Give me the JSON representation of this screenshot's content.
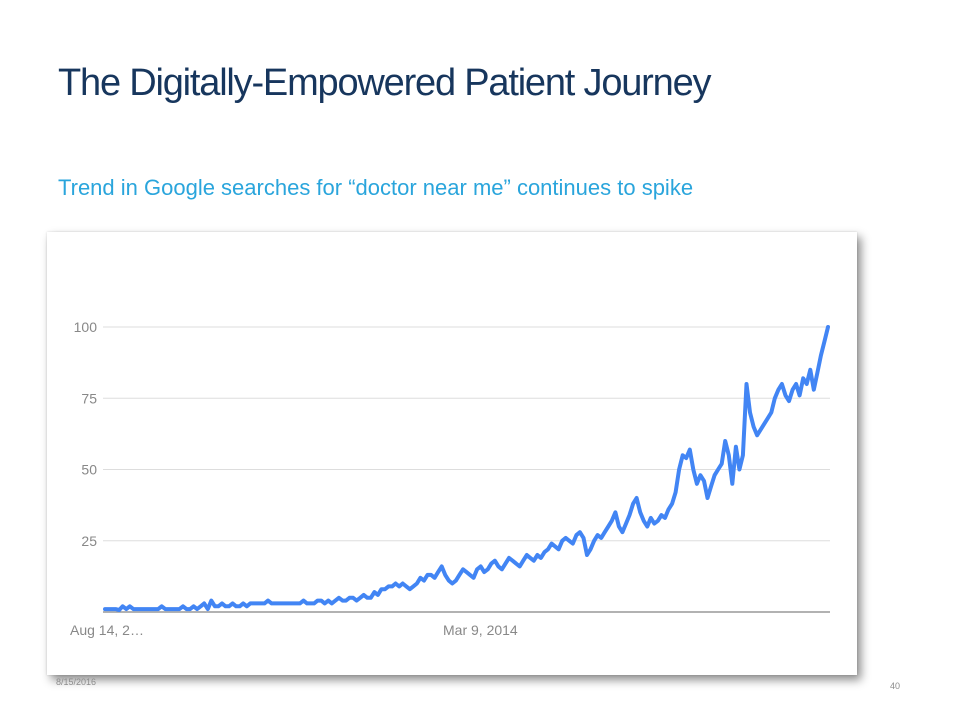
{
  "slide": {
    "title": "The Digitally-Empowered Patient Journey",
    "subtitle": "Trend in Google searches for “doctor near me” continues to spike",
    "footer_date": "8/15/2016",
    "page_number": "40"
  },
  "chart_data": {
    "type": "line",
    "title": "",
    "xlabel": "",
    "ylabel": "",
    "ylim": [
      0,
      100
    ],
    "y_ticks": [
      "25",
      "50",
      "75",
      "100"
    ],
    "x_tick_labels": [
      "Aug 14, 2…",
      "Mar 9, 2014"
    ],
    "grid": true,
    "legend": "none",
    "series_color": "#4285f4",
    "series": [
      {
        "values": [
          1,
          1,
          1,
          1,
          0,
          2,
          1,
          2,
          1,
          1,
          1,
          1,
          1,
          1,
          1,
          1,
          2,
          1,
          1,
          1,
          1,
          1,
          2,
          1,
          1,
          2,
          1,
          2,
          3,
          1,
          4,
          2,
          2,
          3,
          2,
          2,
          3,
          2,
          2,
          3,
          2,
          3,
          3,
          3,
          3,
          3,
          4,
          3,
          3,
          3,
          3,
          3,
          3,
          3,
          3,
          3,
          4,
          3,
          3,
          3,
          4,
          4,
          3,
          4,
          3,
          4,
          5,
          4,
          4,
          5,
          5,
          4,
          5,
          6,
          5,
          5,
          7,
          6,
          8,
          8,
          9,
          9,
          10,
          9,
          10,
          9,
          8,
          9,
          10,
          12,
          11,
          13,
          13,
          12,
          14,
          16,
          13,
          11,
          10,
          11,
          13,
          15,
          14,
          13,
          12,
          15,
          16,
          14,
          15,
          17,
          18,
          16,
          15,
          17,
          19,
          18,
          17,
          16,
          18,
          20,
          19,
          18,
          20,
          19,
          21,
          22,
          24,
          23,
          22,
          25,
          26,
          25,
          24,
          27,
          28,
          26,
          20,
          22,
          25,
          27,
          26,
          28,
          30,
          32,
          35,
          30,
          28,
          31,
          34,
          38,
          40,
          35,
          32,
          30,
          33,
          31,
          32,
          34,
          33,
          36,
          38,
          42,
          50,
          55,
          54,
          57,
          50,
          45,
          48,
          46,
          40,
          44,
          48,
          50,
          52,
          60,
          55,
          45,
          58,
          50,
          55,
          80,
          70,
          65,
          62,
          64,
          66,
          68,
          70,
          75,
          78,
          80,
          76,
          74,
          78,
          80,
          76,
          82,
          80,
          85,
          78,
          84,
          90,
          95,
          100
        ]
      }
    ]
  }
}
